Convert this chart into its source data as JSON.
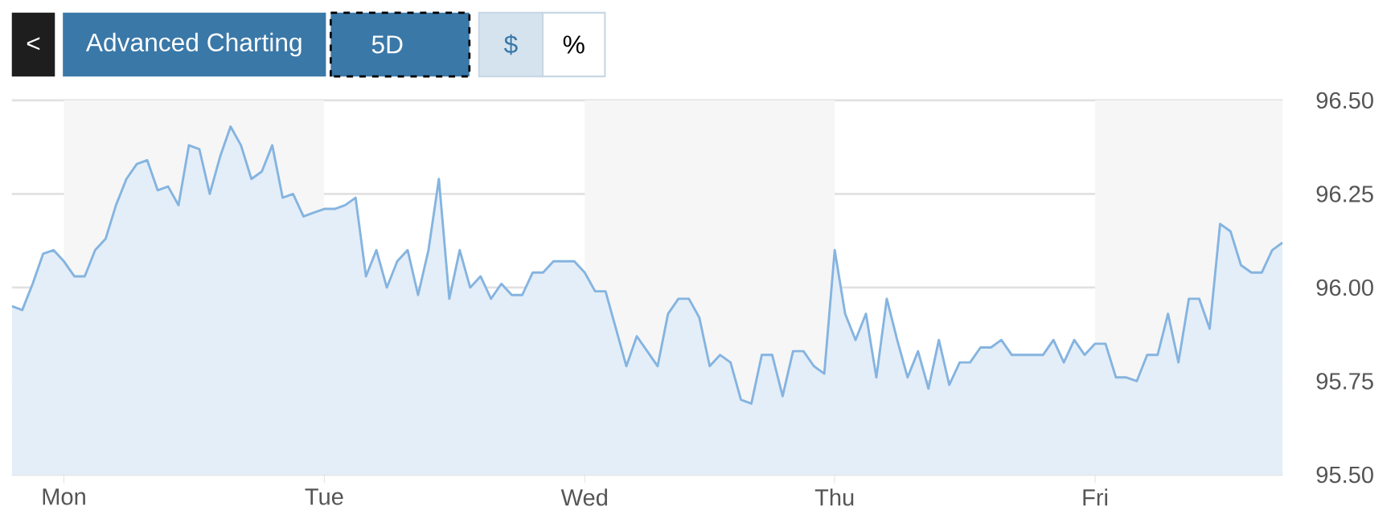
{
  "chart_data": {
    "type": "area",
    "categories": [
      null,
      null,
      null,
      null,
      null,
      "Mon",
      null,
      null,
      null,
      null,
      null,
      null,
      null,
      null,
      null,
      null,
      null,
      null,
      null,
      null,
      null,
      null,
      null,
      null,
      null,
      null,
      null,
      null,
      null,
      null,
      "Tue",
      null,
      null,
      null,
      null,
      null,
      null,
      null,
      null,
      null,
      null,
      null,
      null,
      null,
      null,
      null,
      null,
      null,
      null,
      null,
      null,
      null,
      null,
      null,
      null,
      "Wed",
      null,
      null,
      null,
      null,
      null,
      null,
      null,
      null,
      null,
      null,
      null,
      null,
      null,
      null,
      null,
      null,
      null,
      null,
      null,
      null,
      null,
      null,
      null,
      "Thu",
      null,
      null,
      null,
      null,
      null,
      null,
      null,
      null,
      null,
      null,
      null,
      null,
      null,
      null,
      null,
      null,
      null,
      null,
      null,
      null,
      null,
      null,
      null,
      null,
      "Fri",
      null,
      null,
      null,
      null,
      null,
      null,
      null,
      null,
      null,
      null,
      null,
      null,
      null,
      null,
      null,
      null,
      null,
      null
    ],
    "series": [
      {
        "color": "#85b4e0",
        "values": [
          95.95,
          95.94,
          96.01,
          96.09,
          96.1,
          96.07,
          96.03,
          96.03,
          96.1,
          96.13,
          96.22,
          96.29,
          96.33,
          96.34,
          96.26,
          96.27,
          96.22,
          96.38,
          96.37,
          96.25,
          96.35,
          96.43,
          96.38,
          96.29,
          96.31,
          96.38,
          96.24,
          96.25,
          96.19,
          96.2,
          96.21,
          96.21,
          96.22,
          96.24,
          96.03,
          96.1,
          96.0,
          96.07,
          96.1,
          95.98,
          96.1,
          96.29,
          95.97,
          96.1,
          96.0,
          96.03,
          95.97,
          96.01,
          95.98,
          95.98,
          96.04,
          96.04,
          96.07,
          96.07,
          96.07,
          96.04,
          95.99,
          95.99,
          95.89,
          95.79,
          95.87,
          95.83,
          95.79,
          95.93,
          95.97,
          95.97,
          95.92,
          95.79,
          95.82,
          95.8,
          95.7,
          95.69,
          95.82,
          95.82,
          95.71,
          95.83,
          95.83,
          95.79,
          95.77,
          96.1,
          95.93,
          95.86,
          95.93,
          95.76,
          95.97,
          95.86,
          95.76,
          95.83,
          95.73,
          95.86,
          95.74,
          95.8,
          95.8,
          95.84,
          95.84,
          95.86,
          95.82,
          95.82,
          95.82,
          95.82,
          95.86,
          95.8,
          95.86,
          95.82,
          95.85,
          95.85,
          95.76,
          95.76,
          95.75,
          95.82,
          95.82,
          95.93,
          95.8,
          95.97,
          95.97,
          95.89,
          96.17,
          96.15,
          96.06,
          96.04,
          96.04,
          96.1,
          96.12
        ]
      }
    ],
    "ylim": [
      95.5,
      96.5
    ],
    "yticks": [
      {
        "value": 95.5,
        "label": "95.50"
      },
      {
        "value": 95.75,
        "label": "95.75"
      },
      {
        "value": 96,
        "label": "96.00"
      },
      {
        "value": 96.25,
        "label": "96.25"
      },
      {
        "value": 96.5,
        "label": "96.50"
      }
    ],
    "grid": "y",
    "annotations": [
      "<",
      "Advanced Charting",
      "5D",
      "$",
      "%"
    ]
  }
}
